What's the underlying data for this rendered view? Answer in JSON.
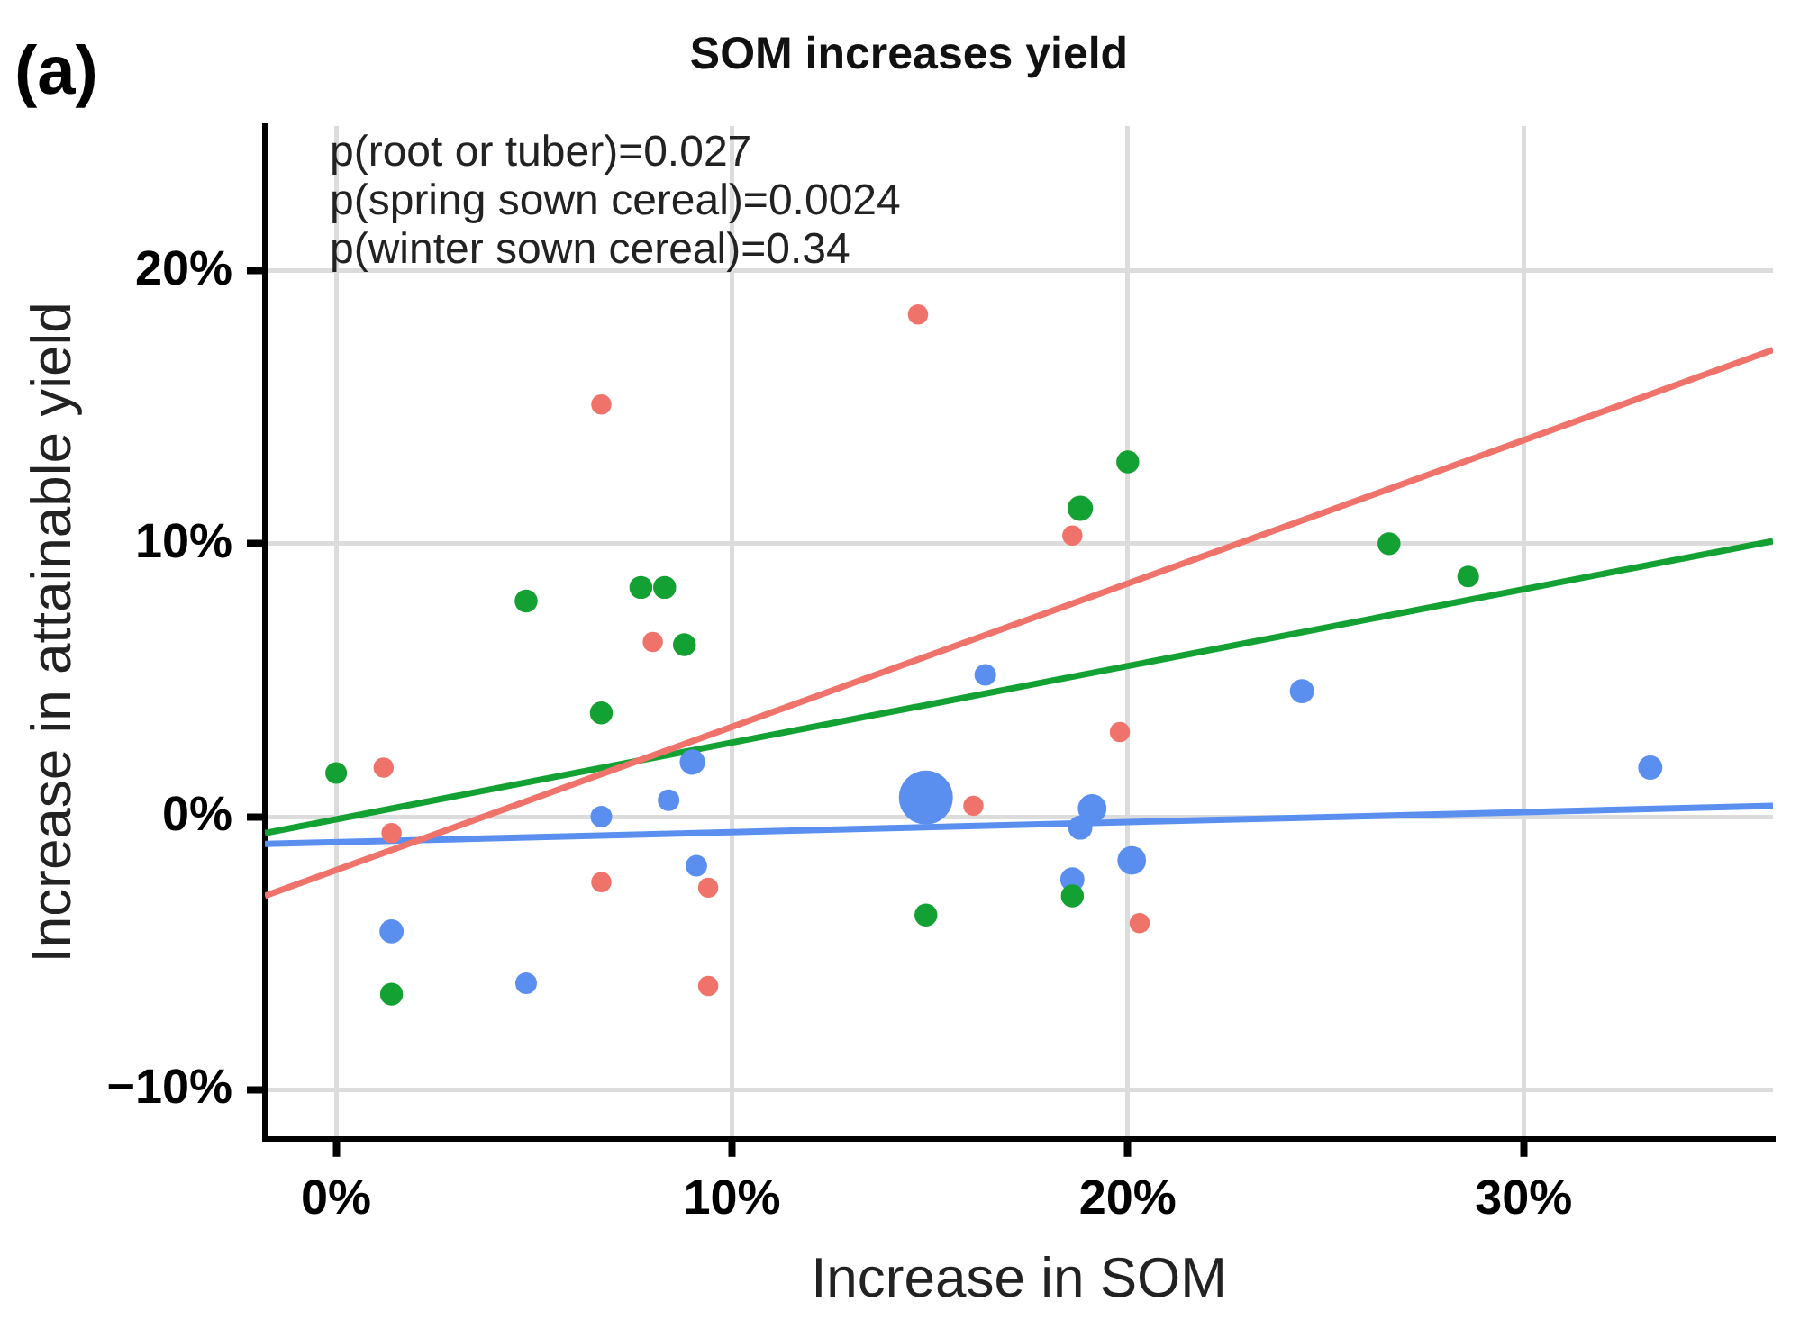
{
  "chart_data": {
    "type": "bubble",
    "title": "SOM increases yield",
    "xlabel": "Increase in SOM",
    "ylabel": "Increase in attainable yield",
    "annotations": [
      "(a)",
      "p(root or tuber)=0.027",
      "p(spring sown cereal)=0.0024",
      "p(winter sown cereal)=0.34"
    ],
    "xlim": [
      -1.8,
      36.3
    ],
    "ylim": [
      -11.8,
      25.3
    ],
    "xticks": [
      {
        "value": 0,
        "label": "0%"
      },
      {
        "value": 10,
        "label": "10%"
      },
      {
        "value": 20,
        "label": "20%"
      },
      {
        "value": 30,
        "label": "30%"
      }
    ],
    "yticks": [
      {
        "value": -10,
        "label": "−10%"
      },
      {
        "value": 0,
        "label": "0%"
      },
      {
        "value": 10,
        "label": "10%"
      },
      {
        "value": 20,
        "label": "20%"
      }
    ],
    "grid": true,
    "legend": false,
    "series": [
      {
        "color": "#f0736b",
        "x": [
          14.7,
          6.7,
          18.6,
          8.0,
          19.8,
          1.2,
          1.4,
          16.1,
          6.7,
          9.4,
          20.3,
          9.4
        ],
        "values": [
          18.4,
          15.1,
          10.3,
          6.4,
          3.1,
          1.8,
          -0.6,
          0.4,
          -2.4,
          -2.6,
          -3.9,
          -6.2
        ],
        "sizes": [
          0.14,
          0.14,
          0.14,
          0.14,
          0.14,
          0.14,
          0.14,
          0.14,
          0.14,
          0.14,
          0.14,
          0.14
        ]
      },
      {
        "color": "#12a132",
        "x": [
          0.0,
          4.8,
          7.7,
          8.3,
          8.8,
          6.7,
          18.8,
          20.0,
          26.6,
          28.6,
          1.4,
          14.9,
          18.6
        ],
        "values": [
          1.6,
          7.9,
          8.4,
          8.4,
          6.3,
          3.8,
          11.3,
          13.0,
          10.0,
          8.8,
          -6.5,
          -3.6,
          -2.9
        ],
        "sizes": [
          0.16,
          0.18,
          0.18,
          0.18,
          0.18,
          0.18,
          0.22,
          0.18,
          0.18,
          0.16,
          0.18,
          0.18,
          0.18
        ]
      },
      {
        "color": "#5a8ff0",
        "x": [
          16.4,
          24.4,
          33.2,
          9.0,
          8.4,
          6.7,
          14.9,
          19.1,
          18.8,
          20.1,
          9.1,
          18.6,
          1.4,
          4.8
        ],
        "values": [
          5.2,
          4.6,
          1.8,
          2.0,
          0.6,
          0.0,
          0.7,
          0.3,
          -0.4,
          -1.6,
          -1.8,
          -2.3,
          -4.2,
          -6.1
        ],
        "sizes": [
          0.16,
          0.2,
          0.2,
          0.22,
          0.16,
          0.16,
          1,
          0.28,
          0.2,
          0.28,
          0.16,
          0.2,
          0.2,
          0.16
        ]
      },
      {
        "type": "line",
        "color": "#f0736b",
        "x": [
          -1.8,
          36.3
        ],
        "values": [
          -2.9,
          17.1
        ]
      },
      {
        "type": "line",
        "color": "#12a132",
        "x": [
          -1.8,
          36.3
        ],
        "values": [
          -0.6,
          10.1
        ]
      },
      {
        "type": "line",
        "color": "#5a8ff0",
        "x": [
          -1.8,
          36.3
        ],
        "values": [
          -1.0,
          0.4
        ]
      }
    ]
  }
}
